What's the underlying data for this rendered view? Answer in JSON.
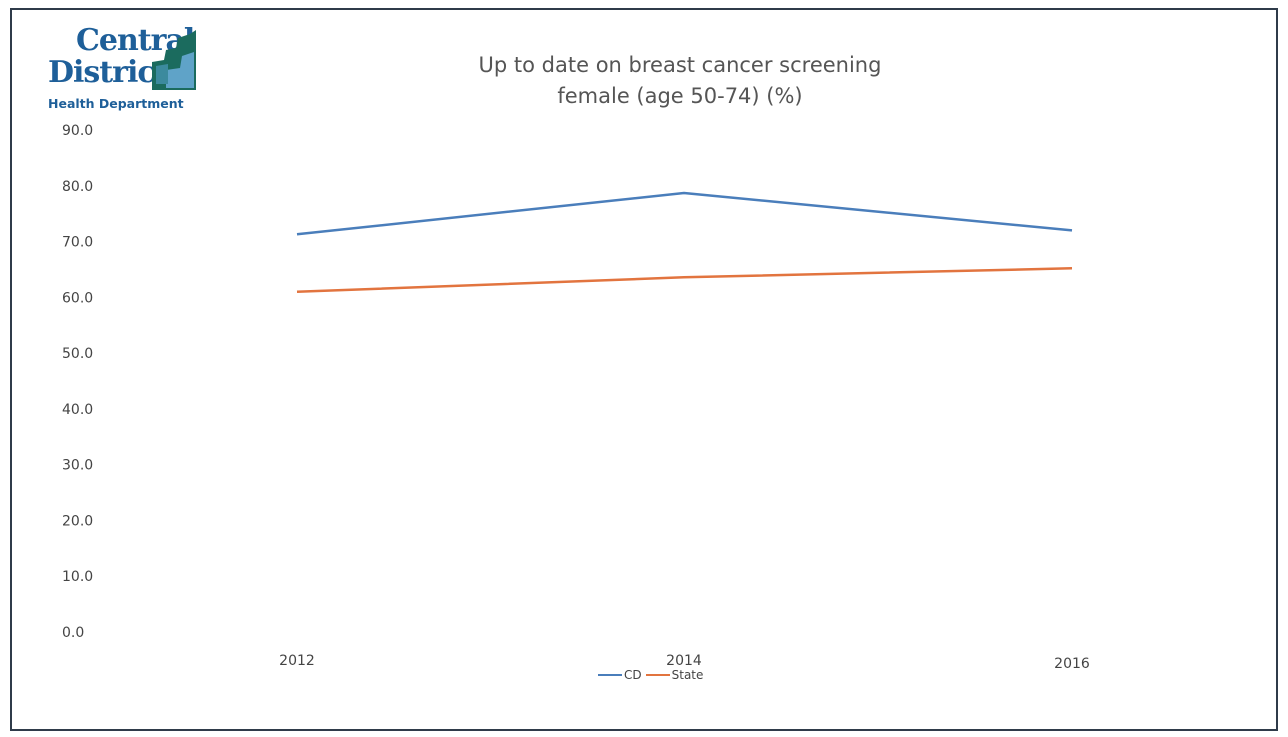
{
  "logo": {
    "line1": "Central",
    "line2": "District",
    "line3": "Health Department"
  },
  "chart_data": {
    "type": "line",
    "title_line1": "Up to date on breast cancer screening",
    "title_line2": "female (age 50-74) (%)",
    "xlabel": "",
    "ylabel": "",
    "categories": [
      "2012",
      "2014",
      "2016"
    ],
    "y_ticks": [
      "90.0",
      "80.0",
      "70.0",
      "60.0",
      "50.0",
      "40.0",
      "30.0",
      "20.0",
      "10.0",
      "0.0"
    ],
    "ylim": [
      0,
      90
    ],
    "grid": false,
    "legend_position": "bottom",
    "series": [
      {
        "name": "CD",
        "color": "#4a7ebb",
        "values": [
          71.3,
          78.7,
          72.0
        ]
      },
      {
        "name": "State",
        "color": "#e2743f",
        "values": [
          61.0,
          63.6,
          65.2
        ]
      }
    ]
  }
}
